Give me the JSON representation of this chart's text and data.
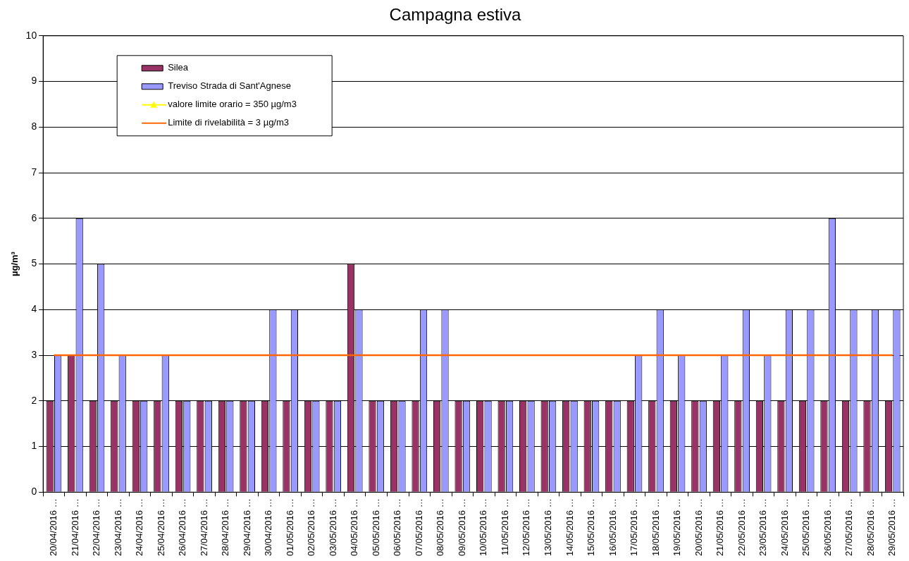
{
  "chart_data": {
    "type": "bar",
    "title": "Campagna estiva",
    "ylabel": "µg/m³",
    "categories": [
      "20/04/2016 …",
      "21/04/2016 …",
      "22/04/2016 …",
      "23/04/2016 …",
      "24/04/2016 …",
      "25/04/2016 …",
      "26/04/2016 …",
      "27/04/2016 …",
      "28/04/2016 …",
      "29/04/2016 …",
      "30/04/2016 …",
      "01/05/2016 …",
      "02/05/2016 …",
      "03/05/2016 …",
      "04/05/2016 …",
      "05/05/2016 …",
      "06/05/2016 …",
      "07/05/2016 …",
      "08/05/2016 …",
      "09/05/2016 …",
      "10/05/2016 …",
      "11/05/2016 …",
      "12/05/2016 …",
      "13/05/2016 …",
      "14/05/2016 …",
      "15/05/2016 …",
      "16/05/2016 …",
      "17/05/2016 …",
      "18/05/2016 …",
      "19/05/2016 …",
      "20/05/2016 …",
      "21/05/2016 …",
      "22/05/2016 …",
      "23/05/2016 …",
      "24/05/2016 …",
      "25/05/2016 …",
      "26/05/2016 …",
      "27/05/2016 …",
      "28/05/2016 …",
      "29/05/2016 …"
    ],
    "series": [
      {
        "name": "Silea",
        "color": "#993366",
        "values": [
          2,
          3,
          2,
          2,
          2,
          2,
          2,
          2,
          2,
          2,
          2,
          2,
          2,
          2,
          5,
          2,
          2,
          2,
          2,
          2,
          2,
          2,
          2,
          2,
          2,
          2,
          2,
          2,
          2,
          2,
          2,
          2,
          2,
          2,
          2,
          2,
          2,
          2,
          2,
          2
        ]
      },
      {
        "name": "Treviso Strada di Sant'Agnese",
        "color": "#9999ff",
        "values": [
          3,
          6,
          5,
          3,
          2,
          3,
          2,
          2,
          2,
          2,
          4,
          4,
          2,
          2,
          4,
          2,
          2,
          4,
          4,
          2,
          2,
          2,
          2,
          2,
          2,
          2,
          2,
          3,
          4,
          3,
          2,
          3,
          4,
          3,
          4,
          4,
          6,
          4,
          4,
          4
        ]
      },
      {
        "name": "valore limite orario = 350 µg/m3",
        "type": "line",
        "marker": "triangle",
        "color": "#ffff00",
        "values": [
          null,
          null,
          null,
          null,
          null,
          null,
          null,
          null,
          null,
          null,
          null,
          null,
          null,
          null,
          null,
          null,
          null,
          null,
          null,
          null,
          null,
          null,
          null,
          null,
          null,
          null,
          null,
          null,
          null,
          null,
          null,
          null,
          null,
          null,
          null,
          null,
          null,
          null,
          null,
          null
        ]
      },
      {
        "name": "Limite di rivelabilità = 3 µg/m3",
        "type": "line",
        "color": "#ff6600",
        "values": [
          3,
          3,
          3,
          3,
          3,
          3,
          3,
          3,
          3,
          3,
          3,
          3,
          3,
          3,
          3,
          3,
          3,
          3,
          3,
          3,
          3,
          3,
          3,
          3,
          3,
          3,
          3,
          3,
          3,
          3,
          3,
          3,
          3,
          3,
          3,
          3,
          3,
          3,
          3,
          3
        ]
      }
    ],
    "ylim": [
      0,
      10
    ],
    "yticks": [
      0,
      1,
      2,
      3,
      4,
      5,
      6,
      7,
      8,
      9,
      10
    ],
    "grid": "y",
    "legend": "top left"
  }
}
